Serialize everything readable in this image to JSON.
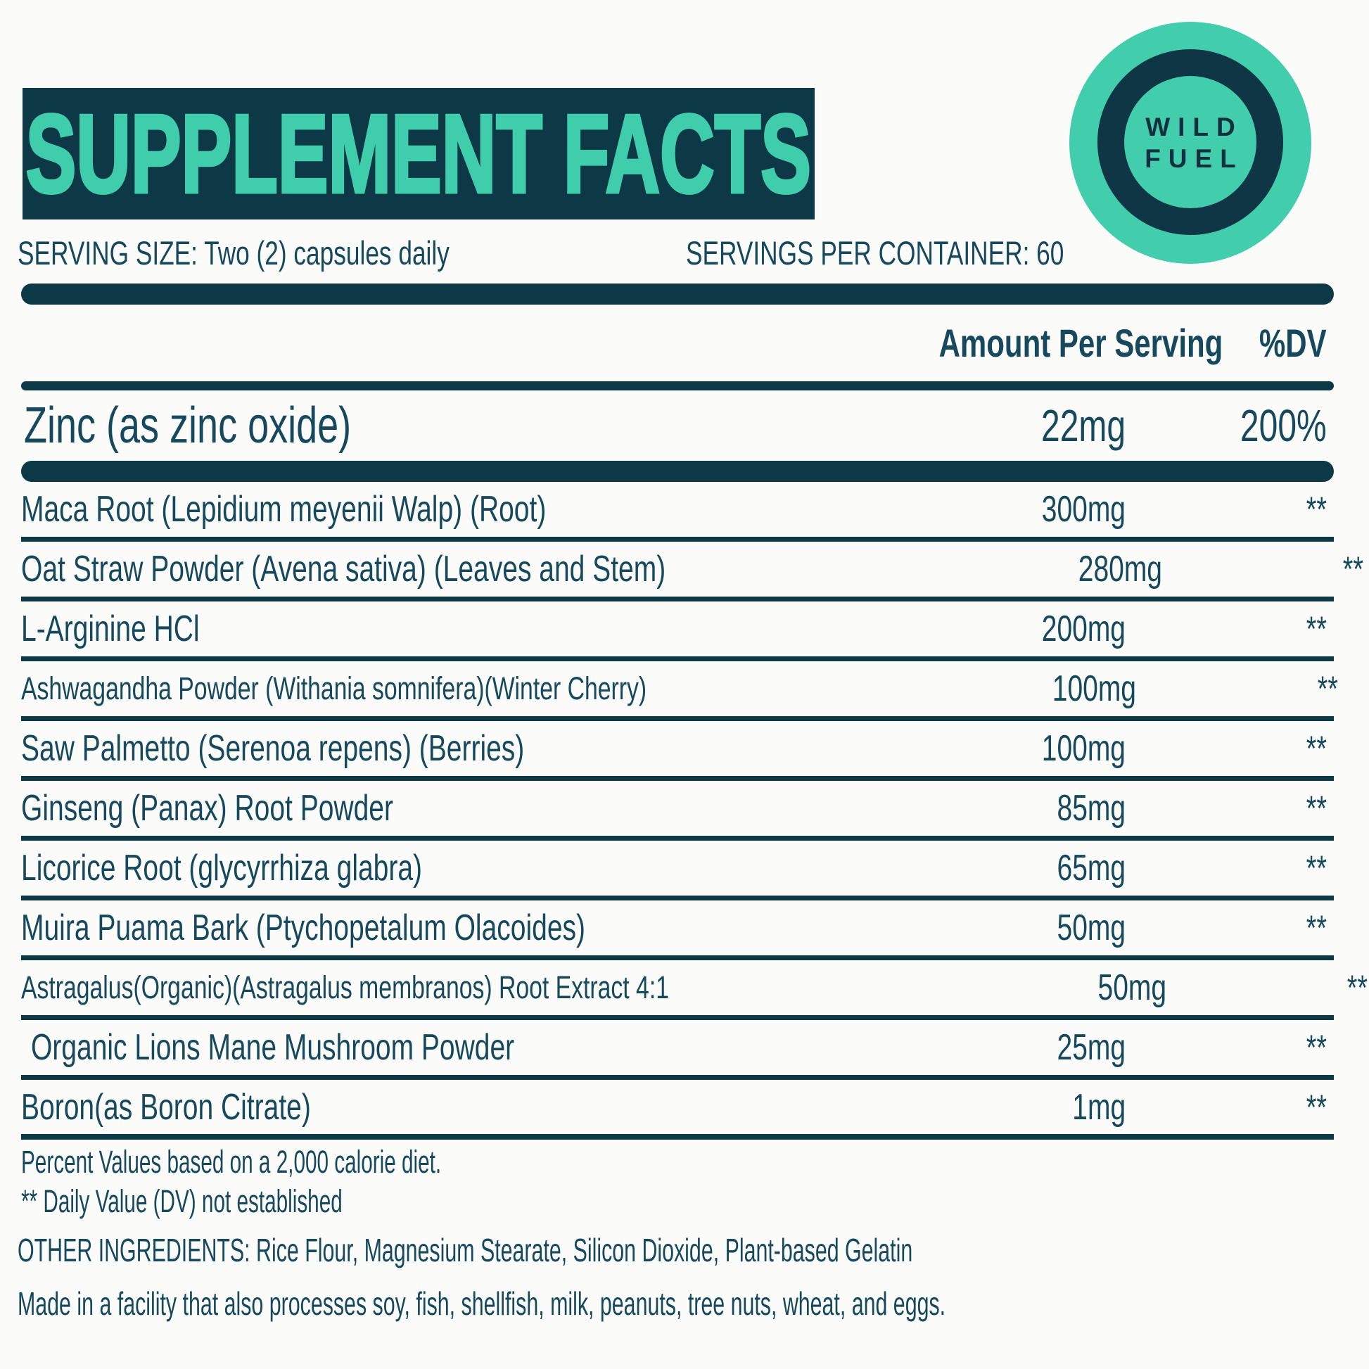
{
  "title": "SUPPLEMENT FACTS",
  "logo": {
    "line1": "WILD",
    "line2": "FUEL"
  },
  "serving": {
    "size": "SERVING SIZE: Two (2) capsules daily",
    "per_container": "SERVINGS PER CONTAINER: 60"
  },
  "table": {
    "amount_header": "Amount Per Serving",
    "dv_header": "%DV",
    "primary_row": {
      "name": "Zinc (as zinc oxide)",
      "amount": "22mg",
      "dv": "200%"
    },
    "rows": [
      {
        "name": "Maca Root (Lepidium meyenii Walp) (Root)",
        "amount": "300mg",
        "dv": "**"
      },
      {
        "name": "Oat Straw Powder (Avena sativa) (Leaves and Stem)",
        "amount": "280mg",
        "dv": "**"
      },
      {
        "name": "L-Arginine HCl",
        "amount": "200mg",
        "dv": "**"
      },
      {
        "name": "Ashwagandha Powder (Withania somnifera)(Winter Cherry)",
        "amount": "100mg",
        "dv": "**"
      },
      {
        "name": "Saw Palmetto (Serenoa repens) (Berries)",
        "amount": "100mg",
        "dv": "**"
      },
      {
        "name": "Ginseng (Panax) Root Powder",
        "amount": "85mg",
        "dv": "**"
      },
      {
        "name": "Licorice Root (glycyrrhiza glabra)",
        "amount": "65mg",
        "dv": "**"
      },
      {
        "name": "Muira Puama Bark (Ptychopetalum Olacoides)",
        "amount": "50mg",
        "dv": "**"
      },
      {
        "name": "Astragalus(Organic)(Astragalus membranos) Root Extract 4:1",
        "amount": "50mg",
        "dv": "**"
      },
      {
        "name": "Organic Lions Mane Mushroom Powder",
        "amount": "25mg",
        "dv": "**"
      },
      {
        "name": "Boron(as Boron Citrate)",
        "amount": "1mg",
        "dv": "**"
      }
    ]
  },
  "footnotes": {
    "percent": "Percent Values based on a 2,000 calorie diet.",
    "daily_value": "** Daily Value (DV) not established"
  },
  "other_ingredients": "OTHER INGREDIENTS: Rice Flour, Magnesium Stearate, Silicon Dioxide, Plant-based Gelatin",
  "allergen_note": "Made in a facility that also processes soy, fish, shellfish, milk, peanuts, tree nuts, wheat, and eggs.",
  "colors": {
    "navy": "#0d3947",
    "teal": "#3fcdac",
    "background": "#fbfcf9"
  }
}
